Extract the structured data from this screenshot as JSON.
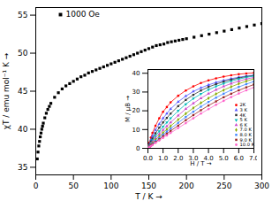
{
  "chart_data": [
    {
      "type": "scatter",
      "xlabel": "T / K",
      "ylabel": "χT / emu mol⁻¹ K",
      "xlim": [
        0,
        300
      ],
      "ylim": [
        34,
        56
      ],
      "xticks": [
        0,
        50,
        100,
        150,
        200,
        250,
        300
      ],
      "yticks": [
        35,
        40,
        45,
        50,
        55
      ],
      "legend": "upper left",
      "x": [
        2,
        3,
        4,
        5,
        6,
        7,
        8,
        9,
        10,
        12,
        14,
        16,
        18,
        20,
        25,
        30,
        35,
        40,
        45,
        50,
        55,
        60,
        65,
        70,
        75,
        80,
        85,
        90,
        95,
        100,
        105,
        110,
        115,
        120,
        125,
        130,
        135,
        140,
        145,
        150,
        155,
        160,
        165,
        170,
        175,
        180,
        185,
        190,
        195,
        200,
        210,
        220,
        230,
        240,
        250,
        260,
        270,
        280,
        290,
        300
      ],
      "series": [
        {
          "name": "1000 Oe",
          "color": "black",
          "marker": "square",
          "values": [
            36.1,
            37.0,
            37.8,
            38.4,
            39.0,
            39.5,
            40.0,
            40.4,
            40.8,
            41.5,
            42.1,
            42.6,
            43.0,
            43.4,
            44.2,
            44.8,
            45.3,
            45.7,
            46.0,
            46.3,
            46.6,
            46.9,
            47.1,
            47.4,
            47.6,
            47.8,
            48.0,
            48.2,
            48.4,
            48.6,
            48.8,
            49.0,
            49.2,
            49.4,
            49.6,
            49.8,
            50.0,
            50.2,
            50.4,
            50.6,
            50.8,
            51.0,
            51.1,
            51.2,
            51.4,
            51.5,
            51.6,
            51.7,
            51.8,
            51.9,
            52.1,
            52.3,
            52.5,
            52.7,
            52.9,
            53.1,
            53.3,
            53.5,
            53.7,
            53.9
          ]
        }
      ]
    },
    {
      "type": "line",
      "xlabel": "H / T",
      "ylabel": "M / μB",
      "xlim": [
        0,
        7
      ],
      "ylim": [
        0,
        42
      ],
      "xticks": [
        0,
        1,
        2,
        3,
        4,
        5,
        6,
        7
      ],
      "yticks": [
        0,
        10,
        20,
        30,
        40
      ],
      "legend": "lower right",
      "x": [
        0.05,
        0.1,
        0.2,
        0.3,
        0.5,
        0.75,
        1.0,
        1.25,
        1.5,
        2.0,
        2.5,
        3.0,
        3.5,
        4.0,
        4.5,
        5.0,
        5.5,
        6.0,
        6.5,
        7.0
      ],
      "series": [
        {
          "name": "2K",
          "color": "#ff0000",
          "marker": "circle",
          "values": [
            1.5,
            3.0,
            5.8,
            8.2,
            12.0,
            16.0,
            19.5,
            22.0,
            24.5,
            28.0,
            30.8,
            33.0,
            34.8,
            36.2,
            37.3,
            38.2,
            38.9,
            39.5,
            39.9,
            40.2
          ]
        },
        {
          "name": "3 K",
          "color": "#5555ff",
          "marker": "triangle",
          "values": [
            1.0,
            2.2,
            4.5,
            6.5,
            9.8,
            13.0,
            16.0,
            18.5,
            21.0,
            24.8,
            27.8,
            30.3,
            32.2,
            33.8,
            35.1,
            36.2,
            37.1,
            37.9,
            38.5,
            39.0
          ]
        },
        {
          "name": "4K",
          "color": "#333333",
          "marker": "square",
          "values": [
            0.8,
            1.8,
            3.6,
            5.2,
            8.0,
            11.0,
            13.8,
            16.2,
            18.5,
            22.5,
            25.8,
            28.5,
            30.8,
            32.7,
            34.2,
            35.5,
            36.6,
            37.5,
            38.2,
            38.8
          ]
        },
        {
          "name": "5 K",
          "color": "#00bbbb",
          "marker": "triangle_down",
          "values": [
            0.6,
            1.4,
            2.9,
            4.2,
            6.6,
            9.1,
            11.6,
            13.8,
            16.0,
            20.0,
            23.5,
            26.5,
            29.0,
            31.2,
            33.0,
            34.5,
            35.8,
            36.9,
            37.8,
            38.5
          ]
        },
        {
          "name": "6 K",
          "color": "#cc44cc",
          "marker": "triangle",
          "values": [
            0.5,
            1.1,
            2.3,
            3.4,
            5.4,
            7.6,
            9.8,
            11.8,
            13.8,
            17.5,
            21.0,
            24.0,
            26.7,
            29.1,
            31.2,
            33.0,
            34.5,
            35.8,
            36.9,
            37.8
          ]
        },
        {
          "name": "7.0 K",
          "color": "#88aa00",
          "marker": "diamond",
          "values": [
            0.4,
            0.9,
            1.9,
            2.8,
            4.5,
            6.4,
            8.3,
            10.1,
            11.9,
            15.3,
            18.5,
            21.5,
            24.2,
            26.7,
            29.0,
            31.0,
            32.8,
            34.4,
            35.8,
            37.0
          ]
        },
        {
          "name": "8.0 K",
          "color": "#4488ff",
          "marker": "square",
          "values": [
            0.35,
            0.8,
            1.6,
            2.4,
            3.9,
            5.6,
            7.3,
            8.9,
            10.5,
            13.6,
            16.7,
            19.5,
            22.2,
            24.7,
            27.0,
            29.1,
            31.0,
            32.7,
            34.2,
            35.6
          ]
        },
        {
          "name": "9.0 K",
          "color": "#992222",
          "marker": "square",
          "values": [
            0.3,
            0.7,
            1.4,
            2.1,
            3.3,
            4.8,
            6.4,
            7.8,
            9.3,
            12.1,
            15.0,
            17.7,
            20.3,
            22.8,
            25.0,
            27.2,
            29.1,
            30.9,
            32.5,
            34.0
          ]
        },
        {
          "name": "10.0 K",
          "color": "#ff66cc",
          "marker": "circle",
          "values": [
            0.25,
            0.6,
            1.2,
            1.8,
            2.9,
            4.2,
            5.6,
            6.9,
            8.2,
            10.8,
            13.4,
            16.0,
            18.5,
            20.9,
            23.2,
            25.3,
            27.3,
            29.2,
            30.9,
            32.5
          ]
        }
      ]
    }
  ]
}
